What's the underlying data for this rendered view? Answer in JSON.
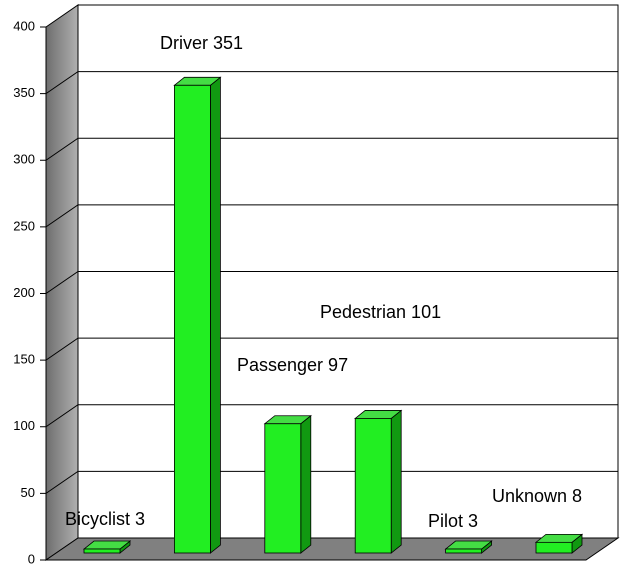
{
  "chart_data": {
    "type": "bar3d",
    "values": [
      3,
      351,
      97,
      101,
      3,
      8
    ],
    "value_labels": [
      "Bicyclist 3",
      "Driver 351",
      "Passenger 97",
      "Pedestrian 101",
      "Pilot 3",
      "Unknown 8"
    ],
    "color": "#22ee22",
    "ylim": [
      0,
      400
    ],
    "yticks": [
      0,
      50,
      100,
      150,
      200,
      250,
      300,
      350,
      400
    ],
    "grid": true
  }
}
